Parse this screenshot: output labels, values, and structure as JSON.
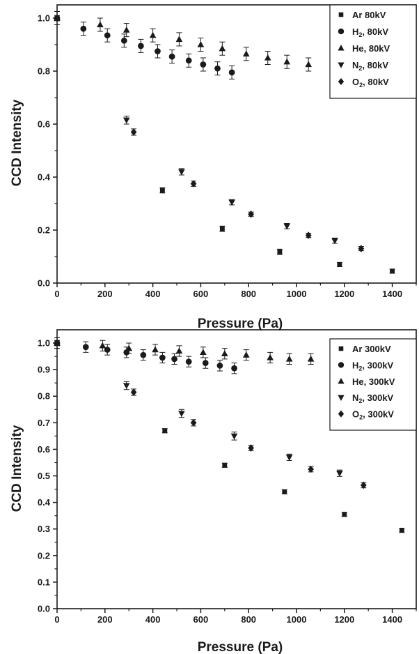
{
  "chart_data": [
    {
      "type": "scatter",
      "title": "",
      "xlabel": "Pressure (Pa)",
      "ylabel": "CCD Intensity",
      "xlim": [
        0,
        1500
      ],
      "ylim": [
        0,
        1.05
      ],
      "xticks": [
        0,
        200,
        400,
        600,
        800,
        1000,
        1200,
        1400
      ],
      "yticks": [
        0.0,
        0.2,
        0.4,
        0.6,
        0.8,
        1.0
      ],
      "ytick_labels": [
        "0.0",
        "0.2",
        "0.4",
        "0.6",
        "0.8",
        "1.0"
      ],
      "grid": false,
      "legend_position": "top-right",
      "series": [
        {
          "name": "Ar 80kV",
          "label_main": "Ar 80kV",
          "label_sub": "",
          "label_tail": "",
          "marker": "square",
          "x": [
            0,
            440,
            690,
            930,
            1180,
            1400
          ],
          "y": [
            1.0,
            0.35,
            0.205,
            0.118,
            0.07,
            0.045
          ],
          "err": [
            0.01,
            0.01,
            0.01,
            0.01,
            0.008,
            0.008
          ]
        },
        {
          "name": "H2, 80kV",
          "label_main": "H",
          "label_sub": "2",
          "label_tail": ", 80kV",
          "marker": "circle",
          "x": [
            0,
            110,
            210,
            280,
            350,
            420,
            480,
            550,
            610,
            670,
            730
          ],
          "y": [
            1.0,
            0.96,
            0.935,
            0.915,
            0.895,
            0.875,
            0.855,
            0.84,
            0.825,
            0.81,
            0.795
          ],
          "err": [
            0.025,
            0.025,
            0.025,
            0.025,
            0.025,
            0.025,
            0.025,
            0.025,
            0.025,
            0.025,
            0.025
          ]
        },
        {
          "name": "He, 80kV",
          "label_main": "He, 80kV",
          "label_sub": "",
          "label_tail": "",
          "marker": "triangle-up",
          "x": [
            0,
            180,
            290,
            400,
            510,
            600,
            690,
            790,
            880,
            960,
            1050
          ],
          "y": [
            1.0,
            0.975,
            0.955,
            0.935,
            0.92,
            0.9,
            0.885,
            0.865,
            0.85,
            0.835,
            0.825
          ],
          "err": [
            0.025,
            0.025,
            0.025,
            0.025,
            0.025,
            0.025,
            0.025,
            0.025,
            0.025,
            0.025,
            0.025
          ]
        },
        {
          "name": "N2, 80kV",
          "label_main": "N",
          "label_sub": "2",
          "label_tail": ", 80kV",
          "marker": "triangle-down",
          "x": [
            290,
            520,
            730,
            960,
            1160
          ],
          "y": [
            0.615,
            0.42,
            0.305,
            0.215,
            0.16
          ],
          "err": [
            0.015,
            0.012,
            0.01,
            0.01,
            0.01
          ]
        },
        {
          "name": "O2, 80kV",
          "label_main": "O",
          "label_sub": "2",
          "label_tail": ", 80kV",
          "marker": "diamond",
          "x": [
            320,
            570,
            810,
            1050,
            1270
          ],
          "y": [
            0.57,
            0.375,
            0.26,
            0.18,
            0.13
          ],
          "err": [
            0.012,
            0.01,
            0.008,
            0.008,
            0.008
          ]
        }
      ]
    },
    {
      "type": "scatter",
      "title": "",
      "xlabel": "Pressure (Pa)",
      "ylabel": "CCD Intensity",
      "xlim": [
        0,
        1500
      ],
      "ylim": [
        0,
        1.05
      ],
      "xticks": [
        0,
        200,
        400,
        600,
        800,
        1000,
        1200,
        1400
      ],
      "yticks": [
        0.0,
        0.1,
        0.2,
        0.3,
        0.4,
        0.5,
        0.6,
        0.7,
        0.8,
        0.9,
        1.0
      ],
      "ytick_labels": [
        "0.0",
        "0.1",
        "0.2",
        "0.3",
        "0.4",
        "0.5",
        "0.6",
        "0.7",
        "0.8",
        "0.9",
        "1.0"
      ],
      "grid": false,
      "legend_position": "top-right",
      "series": [
        {
          "name": "Ar 300kV",
          "label_main": "Ar 300kV",
          "label_sub": "",
          "label_tail": "",
          "marker": "square",
          "x": [
            0,
            450,
            700,
            950,
            1200,
            1440
          ],
          "y": [
            1.0,
            0.67,
            0.54,
            0.44,
            0.355,
            0.295
          ],
          "err": [
            0.01,
            0.008,
            0.008,
            0.008,
            0.008,
            0.008
          ]
        },
        {
          "name": "H2, 300kV",
          "label_main": "H",
          "label_sub": "2",
          "label_tail": ", 300kV",
          "marker": "circle",
          "x": [
            0,
            120,
            210,
            290,
            360,
            440,
            490,
            550,
            620,
            680,
            740
          ],
          "y": [
            1.0,
            0.985,
            0.975,
            0.965,
            0.955,
            0.945,
            0.94,
            0.93,
            0.925,
            0.915,
            0.905
          ],
          "err": [
            0.02,
            0.02,
            0.02,
            0.02,
            0.02,
            0.02,
            0.02,
            0.02,
            0.02,
            0.02,
            0.02
          ]
        },
        {
          "name": "He, 300kV",
          "label_main": "He, 300kV",
          "label_sub": "",
          "label_tail": "",
          "marker": "triangle-up",
          "x": [
            0,
            190,
            300,
            410,
            510,
            610,
            700,
            790,
            890,
            970,
            1060
          ],
          "y": [
            1.0,
            0.99,
            0.98,
            0.975,
            0.97,
            0.965,
            0.96,
            0.955,
            0.945,
            0.94,
            0.94
          ],
          "err": [
            0.02,
            0.02,
            0.02,
            0.02,
            0.02,
            0.02,
            0.02,
            0.02,
            0.02,
            0.02,
            0.02
          ]
        },
        {
          "name": "N2, 300kV",
          "label_main": "N",
          "label_sub": "2",
          "label_tail": ", 300kV",
          "marker": "triangle-down",
          "x": [
            290,
            520,
            740,
            970,
            1180
          ],
          "y": [
            0.84,
            0.735,
            0.65,
            0.57,
            0.51
          ],
          "err": [
            0.015,
            0.015,
            0.015,
            0.012,
            0.012
          ]
        },
        {
          "name": "O2, 300kV",
          "label_main": "O",
          "label_sub": "2",
          "label_tail": ", 300kV",
          "marker": "diamond",
          "x": [
            320,
            570,
            810,
            1060,
            1280
          ],
          "y": [
            0.815,
            0.7,
            0.605,
            0.525,
            0.465
          ],
          "err": [
            0.012,
            0.012,
            0.01,
            0.01,
            0.01
          ]
        }
      ]
    }
  ]
}
